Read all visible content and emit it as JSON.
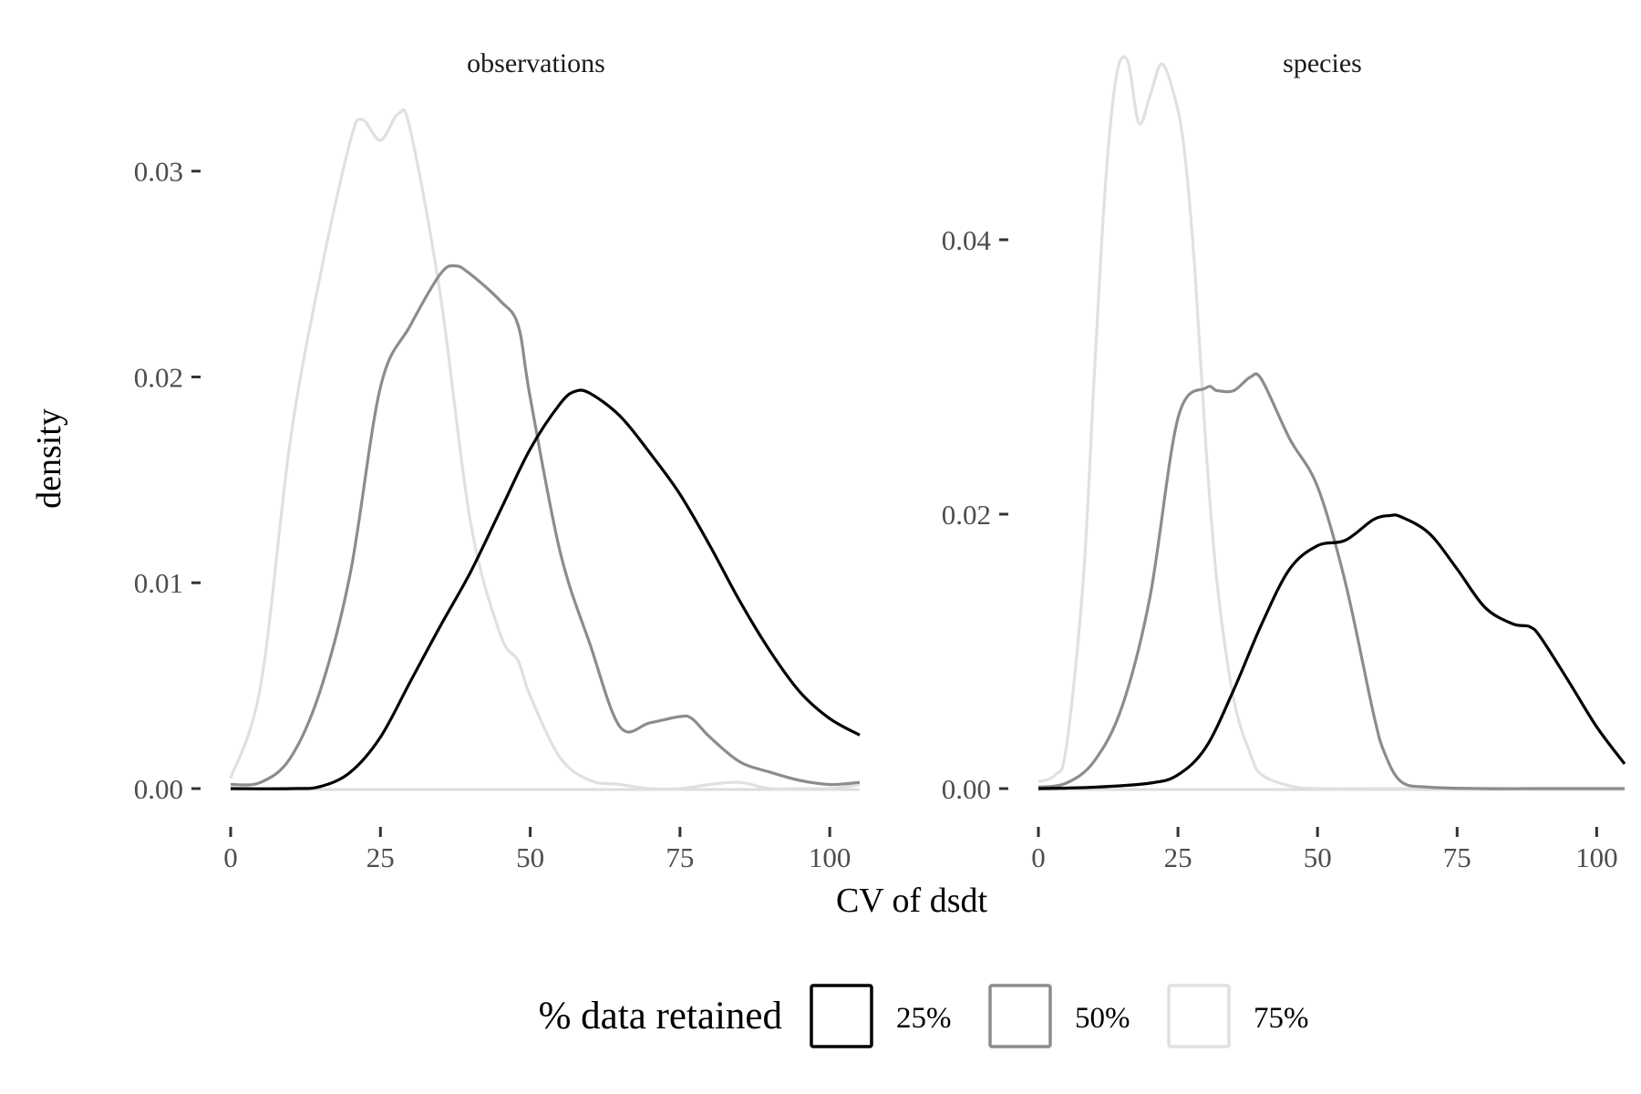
{
  "chart_data": {
    "type": "line",
    "xlabel": "CV of dsdt",
    "ylabel": "density",
    "legend": {
      "title": "% data retained",
      "placement": "bottom",
      "entries": [
        {
          "label": "25%",
          "color": "#000000"
        },
        {
          "label": "50%",
          "color": "#8c8c8c"
        },
        {
          "label": "75%",
          "color": "#e0e0e0"
        }
      ]
    },
    "grid": false,
    "panels": [
      {
        "title": "observations",
        "xlim": [
          0,
          105
        ],
        "ylim": [
          0,
          0.033
        ],
        "xticks": [
          0,
          25,
          50,
          75,
          100
        ],
        "yticks": [
          0,
          0.01,
          0.02,
          0.03
        ],
        "ytick_labels": [
          "0.00",
          "0.01",
          "0.02",
          "0.03"
        ],
        "series": [
          {
            "name": "25%",
            "color": "#000000",
            "x": [
              0,
              10,
              15,
              20,
              25,
              30,
              35,
              40,
              45,
              50,
              55,
              57.5,
              60,
              65,
              70,
              75,
              80,
              85,
              90,
              95,
              100,
              105
            ],
            "y": [
              0,
              0,
              0.0001,
              0.0008,
              0.0025,
              0.0052,
              0.0079,
              0.0105,
              0.0135,
              0.0165,
              0.0187,
              0.0193,
              0.0192,
              0.0181,
              0.0163,
              0.0143,
              0.0118,
              0.0091,
              0.0067,
              0.0047,
              0.0034,
              0.0026
            ]
          },
          {
            "name": "50%",
            "color": "#8c8c8c",
            "x": [
              0,
              5,
              10,
              15,
              20,
              25,
              30,
              35,
              37.5,
              40,
              45,
              48,
              50,
              55,
              60,
              65,
              70,
              75,
              77,
              80,
              85,
              90,
              95,
              100,
              105
            ],
            "y": [
              0.0002,
              0.0003,
              0.0015,
              0.0048,
              0.0105,
              0.0195,
              0.0225,
              0.025,
              0.0254,
              0.025,
              0.0237,
              0.0225,
              0.019,
              0.0115,
              0.007,
              0.003,
              0.0032,
              0.0035,
              0.0034,
              0.0025,
              0.0013,
              0.0008,
              0.0004,
              0.0002,
              0.0003
            ]
          },
          {
            "name": "75%",
            "color": "#e0e0e0",
            "x": [
              0,
              5,
              10,
              15,
              20,
              22,
              25,
              28,
              30,
              35,
              40,
              45,
              48,
              50,
              55,
              60,
              65,
              70,
              75,
              80,
              85,
              90,
              95,
              100,
              105
            ],
            "y": [
              0.0005,
              0.005,
              0.017,
              0.025,
              0.0315,
              0.0325,
              0.0315,
              0.0328,
              0.032,
              0.024,
              0.013,
              0.0075,
              0.0062,
              0.0045,
              0.0015,
              0.0004,
              0.0002,
              0,
              0,
              0.0002,
              0.0003,
              0,
              0,
              0,
              0.0002
            ]
          }
        ]
      },
      {
        "title": "species",
        "xlim": [
          0,
          105
        ],
        "ylim": [
          0,
          0.0495
        ],
        "xticks": [
          0,
          25,
          50,
          75,
          100
        ],
        "yticks": [
          0,
          0.02,
          0.04
        ],
        "ytick_labels": [
          "0.00",
          "0.02",
          "0.04"
        ],
        "series": [
          {
            "name": "25%",
            "color": "#000000",
            "x": [
              0,
              10,
              20,
              25,
              30,
              35,
              40,
              45,
              50,
              55,
              60,
              63,
              65,
              70,
              75,
              80,
              85,
              88,
              90,
              95,
              100,
              105
            ],
            "y": [
              0,
              0.0001,
              0.0004,
              0.001,
              0.003,
              0.0072,
              0.012,
              0.016,
              0.0177,
              0.0181,
              0.0196,
              0.0199,
              0.0198,
              0.0186,
              0.016,
              0.0132,
              0.012,
              0.0118,
              0.011,
              0.0078,
              0.0045,
              0.0018
            ]
          },
          {
            "name": "50%",
            "color": "#8c8c8c",
            "x": [
              0,
              5,
              10,
              15,
              20,
              25,
              30,
              32,
              35,
              38,
              40,
              45,
              50,
              55,
              60,
              62,
              65,
              70,
              80,
              90,
              105
            ],
            "y": [
              0.0001,
              0.0004,
              0.002,
              0.006,
              0.014,
              0.027,
              0.0292,
              0.029,
              0.029,
              0.03,
              0.0298,
              0.0255,
              0.022,
              0.015,
              0.0055,
              0.0026,
              0.0005,
              0.0001,
              0,
              0,
              0
            ]
          },
          {
            "name": "75%",
            "color": "#e0e0e0",
            "x": [
              0,
              3,
              5,
              8,
              10,
              12,
              14,
              16,
              18,
              20,
              22,
              24,
              26,
              28,
              30,
              32,
              35,
              38,
              40,
              45,
              50,
              60,
              70,
              80,
              90,
              100,
              105
            ],
            "y": [
              0.0005,
              0.001,
              0.003,
              0.015,
              0.03,
              0.044,
              0.052,
              0.053,
              0.0485,
              0.0505,
              0.0528,
              0.051,
              0.047,
              0.038,
              0.025,
              0.015,
              0.0065,
              0.0025,
              0.001,
              0.0002,
              0,
              0,
              0,
              0,
              0,
              0,
              0
            ]
          }
        ]
      }
    ]
  }
}
